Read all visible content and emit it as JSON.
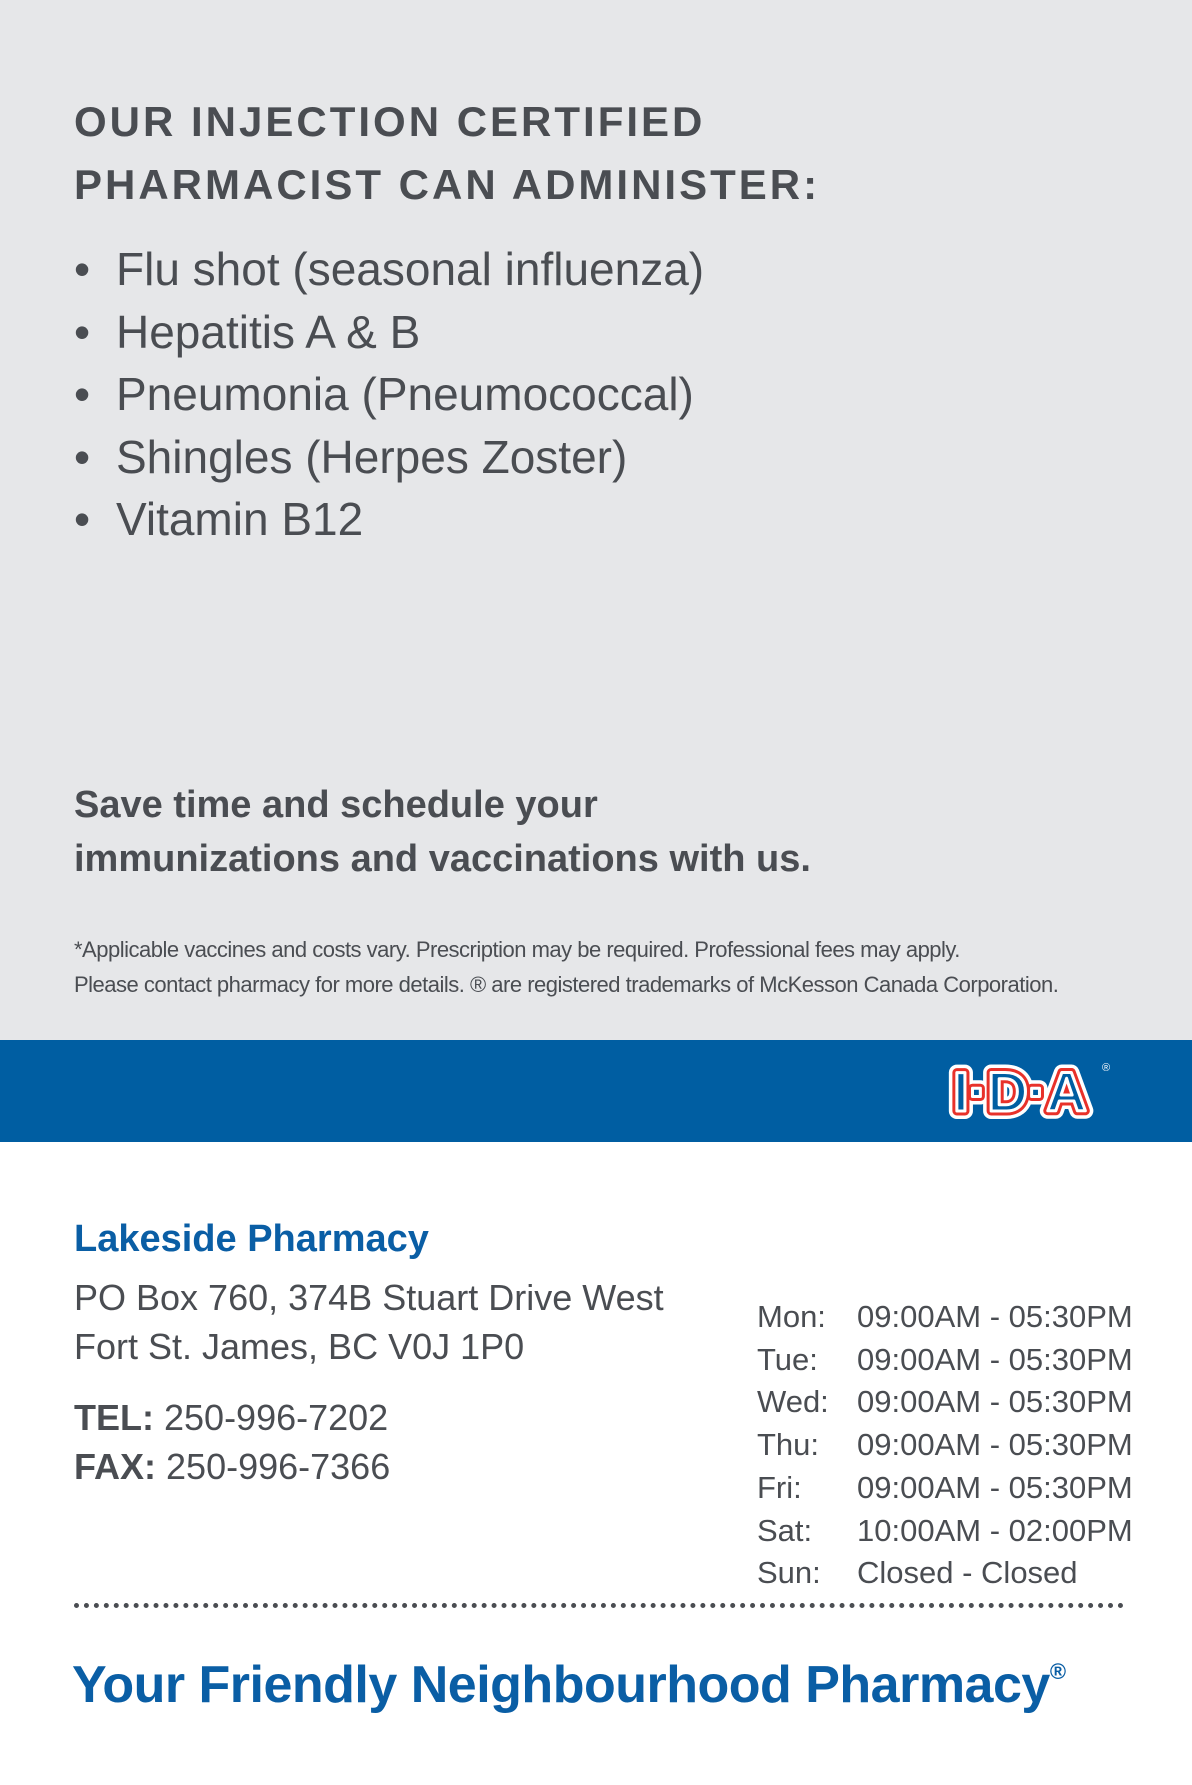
{
  "heading": {
    "line1": "OUR INJECTION CERTIFIED",
    "line2": "PHARMACIST CAN ADMINISTER:"
  },
  "services": [
    "Flu shot (seasonal influenza)",
    "Hepatitis A & B",
    "Pneumonia (Pneumococcal)",
    "Shingles (Herpes Zoster)",
    "Vitamin B12"
  ],
  "cta": {
    "line1": "Save time and schedule your",
    "line2": "immunizations and vaccinations with us."
  },
  "disclaimer": {
    "line1": "*Applicable vaccines and costs vary. Prescription may be required. Professional fees may apply.",
    "line2": "Please contact pharmacy for more details. ® are registered trademarks of McKesson Canada Corporation."
  },
  "logo": {
    "text": "I·D·A",
    "colors": {
      "fill": "#005ea2",
      "outline": "#e8312a"
    }
  },
  "pharmacy": {
    "name": "Lakeside Pharmacy",
    "address1": "PO Box 760, 374B Stuart Drive West",
    "address2": "Fort St. James, BC V0J 1P0",
    "tel_label": "TEL:",
    "tel": "250-996-7202",
    "fax_label": "FAX:",
    "fax": "250-996-7366"
  },
  "hours": [
    {
      "day": "Mon:",
      "time": "09:00AM - 05:30PM"
    },
    {
      "day": "Tue:",
      "time": "09:00AM - 05:30PM"
    },
    {
      "day": "Wed:",
      "time": "09:00AM - 05:30PM"
    },
    {
      "day": "Thu:",
      "time": "09:00AM - 05:30PM"
    },
    {
      "day": "Fri:",
      "time": "09:00AM - 05:30PM"
    },
    {
      "day": "Sat:",
      "time": "10:00AM - 02:00PM"
    },
    {
      "day": "Sun:",
      "time": "Closed - Closed"
    }
  ],
  "tagline": {
    "text": "Your Friendly Neighbourhood Pharmacy",
    "mark": "®"
  },
  "colors": {
    "brand_blue": "#005ea2",
    "background_gray": "#e6e7e9",
    "text": "#4a4d52"
  }
}
